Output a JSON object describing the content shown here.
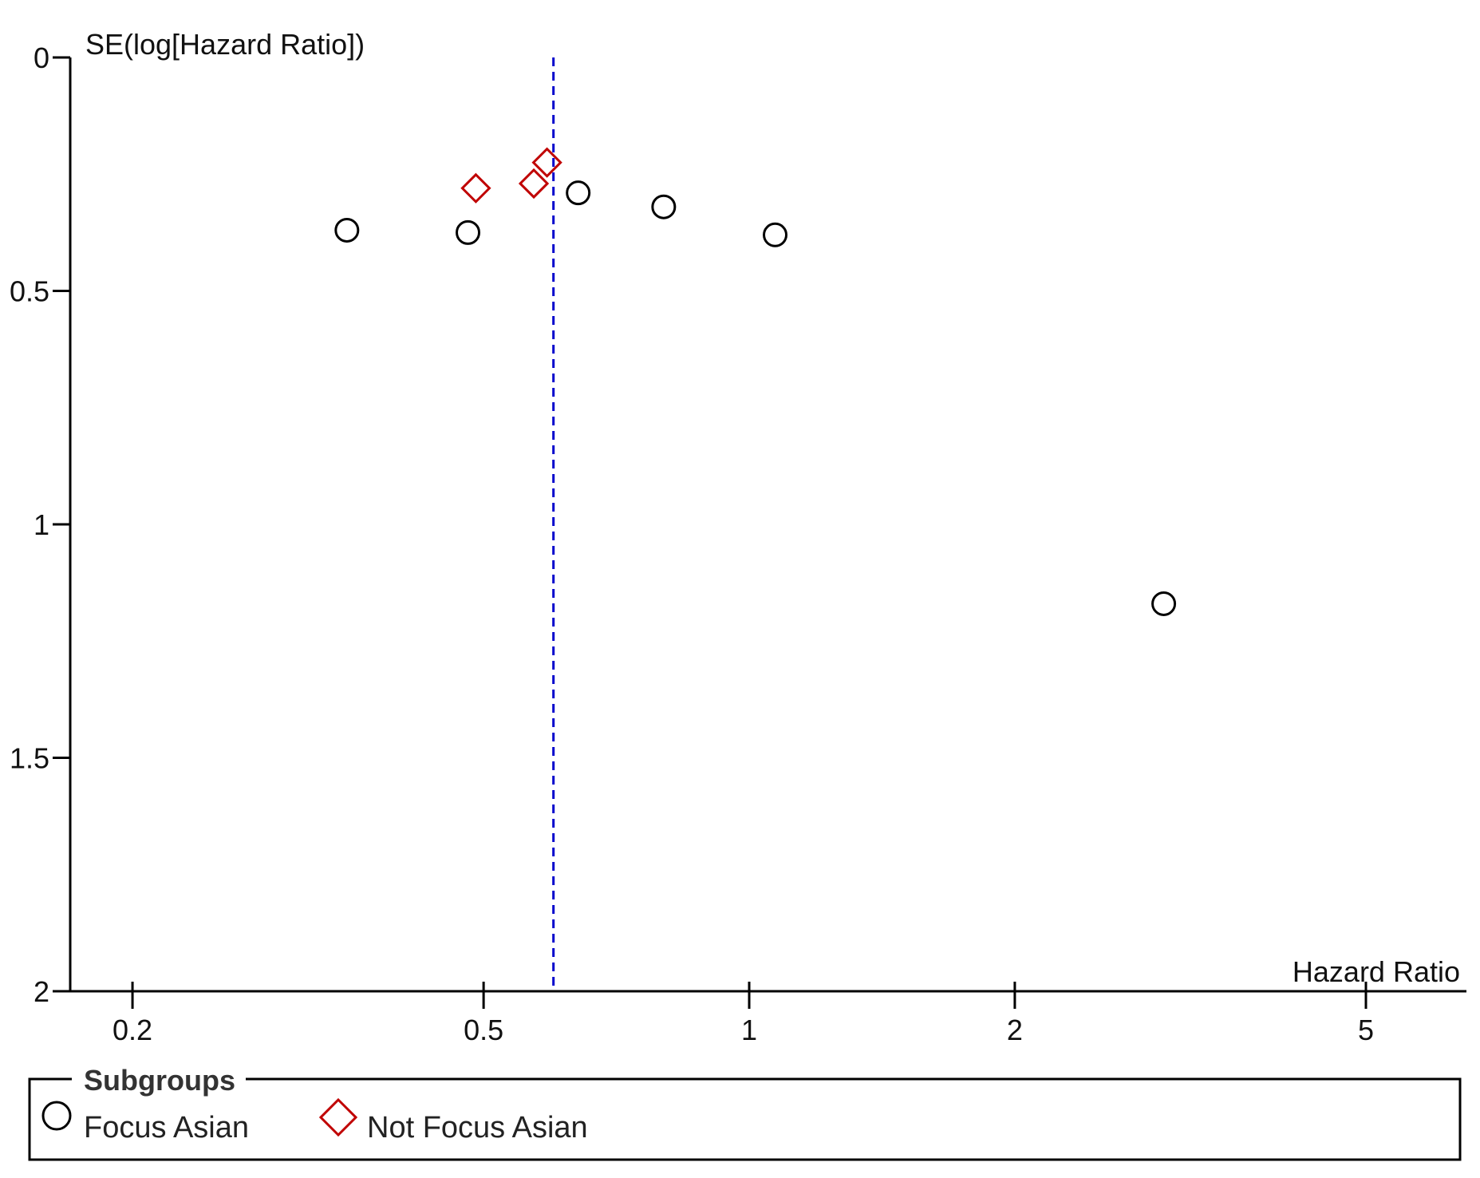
{
  "chart_data": {
    "type": "scatter",
    "subtype": "funnel-plot",
    "x_scale": "log",
    "y_reversed": true,
    "xlabel": "Hazard Ratio",
    "ylabel": "SE(log[Hazard Ratio])",
    "xlim": [
      0.17,
      6.5
    ],
    "ylim": [
      0,
      2
    ],
    "x_ticks": [
      0.2,
      0.5,
      1,
      2,
      5
    ],
    "x_tick_labels": [
      "0.2",
      "0.5",
      "1",
      "2",
      "5"
    ],
    "y_ticks": [
      0,
      0.5,
      1,
      1.5,
      2
    ],
    "y_tick_labels": [
      "0",
      "0.5",
      "1",
      "1.5",
      "2"
    ],
    "grid": false,
    "reference_line": {
      "x": 0.6,
      "color": "#0000cc",
      "style": "dashed"
    },
    "series": [
      {
        "name": "Focus Asian",
        "marker": "circle",
        "color": "#000000",
        "points": [
          {
            "x": 0.35,
            "y": 0.37
          },
          {
            "x": 0.48,
            "y": 0.375
          },
          {
            "x": 0.64,
            "y": 0.29
          },
          {
            "x": 0.8,
            "y": 0.32
          },
          {
            "x": 1.07,
            "y": 0.38
          },
          {
            "x": 2.95,
            "y": 1.17
          }
        ]
      },
      {
        "name": "Not Focus Asian",
        "marker": "diamond",
        "color": "#c00000",
        "points": [
          {
            "x": 0.49,
            "y": 0.28
          },
          {
            "x": 0.57,
            "y": 0.27
          },
          {
            "x": 0.59,
            "y": 0.225
          }
        ]
      }
    ],
    "legend": {
      "title": "Subgroups",
      "placement": "bottom",
      "entries": [
        {
          "label": "Focus Asian",
          "marker": "circle",
          "color": "#000000"
        },
        {
          "label": "Not Focus Asian",
          "marker": "diamond",
          "color": "#c00000"
        }
      ]
    }
  }
}
